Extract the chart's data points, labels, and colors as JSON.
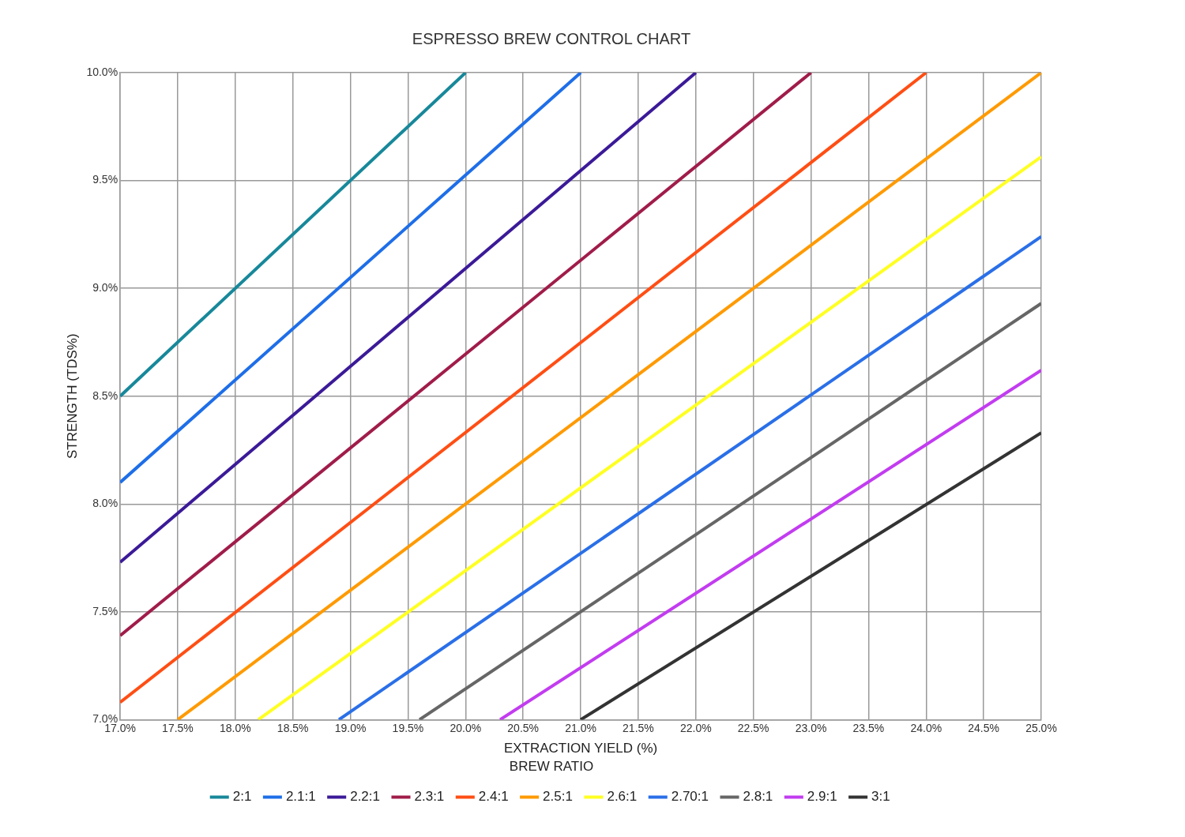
{
  "chart_data": {
    "type": "line",
    "title": "ESPRESSO BREW CONTROL CHART",
    "xlabel": "EXTRACTION YIELD (%)",
    "ylabel": "STRENGTH (TDS%)",
    "legend_title": "BREW RATIO",
    "legend": "bottom",
    "grid": true,
    "marker": "none",
    "line_style": "solid",
    "xlim": [
      17,
      25
    ],
    "xticks": [
      {
        "value": 17,
        "label": "17.0%"
      },
      {
        "value": 17.5,
        "label": "17.5%"
      },
      {
        "value": 18,
        "label": "18.0%"
      },
      {
        "value": 18.5,
        "label": "18.5%"
      },
      {
        "value": 19,
        "label": "19.0%"
      },
      {
        "value": 19.5,
        "label": "19.5%"
      },
      {
        "value": 20,
        "label": "20.0%"
      },
      {
        "value": 20.5,
        "label": "20.5%"
      },
      {
        "value": 21,
        "label": "21.0%"
      },
      {
        "value": 21.5,
        "label": "21.5%"
      },
      {
        "value": 22,
        "label": "22.0%"
      },
      {
        "value": 22.5,
        "label": "22.5%"
      },
      {
        "value": 23,
        "label": "23.0%"
      },
      {
        "value": 23.5,
        "label": "23.5%"
      },
      {
        "value": 24,
        "label": "24.0%"
      },
      {
        "value": 24.5,
        "label": "24.5%"
      },
      {
        "value": 25,
        "label": "25.0%"
      }
    ],
    "ylim": [
      7,
      10
    ],
    "yticks": [
      {
        "value": 7,
        "label": "7.0%"
      },
      {
        "value": 7.5,
        "label": "7.5%"
      },
      {
        "value": 8,
        "label": "8.0%"
      },
      {
        "value": 8.5,
        "label": "8.5%"
      },
      {
        "value": 9,
        "label": "9.0%"
      },
      {
        "value": 9.5,
        "label": "9.5%"
      },
      {
        "value": 10,
        "label": "10.0%"
      }
    ],
    "series": [
      {
        "name": "2:1",
        "color": "#17889a",
        "x": [
          17,
          20
        ],
        "values": [
          8.5,
          10
        ]
      },
      {
        "name": "2.1:1",
        "color": "#1e6ee8",
        "x": [
          17,
          21
        ],
        "values": [
          8.1,
          10
        ]
      },
      {
        "name": "2.2:1",
        "color": "#3b1a98",
        "x": [
          17,
          22
        ],
        "values": [
          7.73,
          10
        ]
      },
      {
        "name": "2.3:1",
        "color": "#a01c4a",
        "x": [
          17,
          23
        ],
        "values": [
          7.39,
          10
        ]
      },
      {
        "name": "2.4:1",
        "color": "#ff4e14",
        "x": [
          17,
          24
        ],
        "values": [
          7.08,
          10
        ]
      },
      {
        "name": "2.5:1",
        "color": "#ff9a00",
        "x": [
          17.5,
          25
        ],
        "values": [
          7,
          10
        ]
      },
      {
        "name": "2.6:1",
        "color": "#ffff22",
        "x": [
          18.2,
          25
        ],
        "values": [
          7,
          9.61
        ]
      },
      {
        "name": "2.70:1",
        "color": "#2a6fe8",
        "x": [
          18.9,
          25
        ],
        "values": [
          7,
          9.24
        ]
      },
      {
        "name": "2.8:1",
        "color": "#666666",
        "x": [
          19.6,
          25
        ],
        "values": [
          7,
          8.93
        ]
      },
      {
        "name": "2.9:1",
        "color": "#c23cf0",
        "x": [
          20.3,
          25
        ],
        "values": [
          7,
          8.62
        ]
      },
      {
        "name": "3:1",
        "color": "#333333",
        "x": [
          21,
          25
        ],
        "values": [
          7,
          8.33
        ]
      }
    ]
  }
}
